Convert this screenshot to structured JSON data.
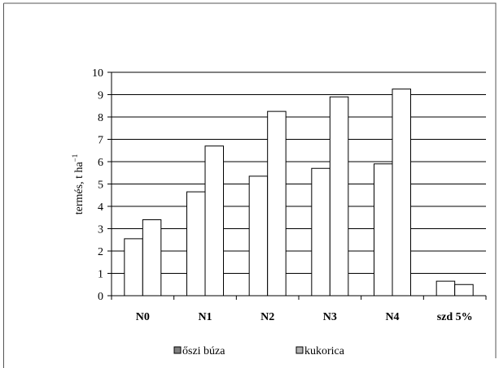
{
  "chart_data": {
    "type": "bar",
    "ylabel": "termés, t ha",
    "ylabel_sup": "−1",
    "ylim": [
      0,
      10
    ],
    "yticks": [
      "0",
      "1",
      "2",
      "3",
      "4",
      "5",
      "6",
      "7",
      "8",
      "9",
      "10"
    ],
    "categories": [
      "N0",
      "N1",
      "N2",
      "N3",
      "N4",
      "szd 5%"
    ],
    "series": [
      {
        "name": "őszi búza",
        "values": [
          2.55,
          4.65,
          5.35,
          5.7,
          5.9,
          0.65
        ]
      },
      {
        "name": "kukorica",
        "values": [
          3.4,
          6.7,
          8.25,
          8.9,
          9.25,
          0.5
        ]
      }
    ],
    "grid": true,
    "legend_position": "bottom",
    "colors": {
      "bar_fill": "#ffffff",
      "bar_stroke": "#000000",
      "legend_swatch_1": "#808080",
      "legend_swatch_2": "#b0b0b0"
    }
  }
}
